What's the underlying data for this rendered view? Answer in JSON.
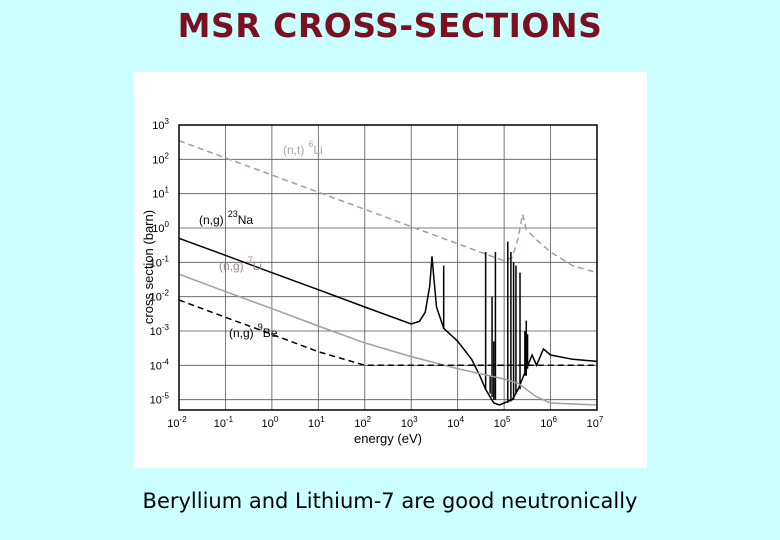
{
  "title": "MSR CROSS-SECTIONS",
  "caption": "Beryllium and Lithium-7 are good neutronically",
  "chart_data": {
    "type": "line",
    "xlabel": "energy (eV)",
    "ylabel": "cross section (barn)",
    "xscale": "log",
    "yscale": "log",
    "xlim": [
      0.01,
      10000000
    ],
    "ylim": [
      5e-06,
      1000
    ],
    "grid": true,
    "x_ticks": [
      {
        "base": "10",
        "exp": "-2"
      },
      {
        "base": "10",
        "exp": "-1"
      },
      {
        "base": "10",
        "exp": "0"
      },
      {
        "base": "10",
        "exp": "1"
      },
      {
        "base": "10",
        "exp": "2"
      },
      {
        "base": "10",
        "exp": "3"
      },
      {
        "base": "10",
        "exp": "4"
      },
      {
        "base": "10",
        "exp": "5"
      },
      {
        "base": "10",
        "exp": "6"
      },
      {
        "base": "10",
        "exp": "7"
      }
    ],
    "y_ticks": [
      {
        "base": "10",
        "exp": "3"
      },
      {
        "base": "10",
        "exp": "2"
      },
      {
        "base": "10",
        "exp": "1"
      },
      {
        "base": "10",
        "exp": "0"
      },
      {
        "base": "10",
        "exp": "-1"
      },
      {
        "base": "10",
        "exp": "-2"
      },
      {
        "base": "10",
        "exp": "-3"
      },
      {
        "base": "10",
        "exp": "-4"
      },
      {
        "base": "10",
        "exp": "-5"
      }
    ],
    "series": [
      {
        "key": "li6",
        "color": "#a89b9b",
        "dash": "dashed",
        "label": {
          "reaction": "(n,t)",
          "mass": "6",
          "element": "Li",
          "color": "#b0a0a0"
        },
        "x": [
          0.01,
          0.1,
          1,
          10,
          100,
          1000,
          10000,
          100000,
          150000,
          200000,
          250000,
          300000,
          500000,
          1000000,
          3000000,
          10000000
        ],
        "y": [
          350,
          110,
          35,
          11,
          3.5,
          1.1,
          0.35,
          0.11,
          0.14,
          0.5,
          2.5,
          0.9,
          0.45,
          0.2,
          0.08,
          0.05
        ]
      },
      {
        "key": "na23",
        "color": "#000000",
        "dash": "solid",
        "label": {
          "reaction": "(n,g)",
          "mass": "23",
          "element": "Na",
          "color": "#000000"
        },
        "x": [
          0.01,
          0.1,
          1,
          10,
          100,
          1000,
          1500,
          2000,
          2500,
          2800,
          3000,
          3500,
          5000,
          10000,
          20000,
          30000,
          40000,
          50000,
          60000,
          80000,
          100000,
          150000,
          200000,
          400000,
          500000,
          700000,
          1000000,
          3000000,
          10000000
        ],
        "y": [
          0.5,
          0.16,
          0.05,
          0.016,
          0.005,
          0.0016,
          0.0019,
          0.0035,
          0.02,
          0.15,
          0.05,
          0.005,
          0.0012,
          0.0005,
          0.00015,
          5e-05,
          2e-05,
          1.2e-05,
          8e-06,
          7e-06,
          8e-06,
          1e-05,
          2e-05,
          0.0002,
          0.0001,
          0.0003,
          0.0002,
          0.00015,
          0.00013
        ],
        "resonances": [
          {
            "x": 5000,
            "y_min": 0.0012,
            "y_max": 0.08
          },
          {
            "x": 40000,
            "y_min": 2e-05,
            "y_max": 0.2
          },
          {
            "x": 50000,
            "y_min": 1.5e-05,
            "y_max": 5e-05
          },
          {
            "x": 55000,
            "y_min": 1.2e-05,
            "y_max": 0.01
          },
          {
            "x": 60000,
            "y_min": 1e-05,
            "y_max": 0.0005
          },
          {
            "x": 65000,
            "y_min": 1e-05,
            "y_max": 0.2
          },
          {
            "x": 120000,
            "y_min": 8e-06,
            "y_max": 0.4
          },
          {
            "x": 140000,
            "y_min": 9e-06,
            "y_max": 0.2
          },
          {
            "x": 160000,
            "y_min": 1e-05,
            "y_max": 0.1
          },
          {
            "x": 180000,
            "y_min": 1.5e-05,
            "y_max": 0.08
          },
          {
            "x": 220000,
            "y_min": 2e-05,
            "y_max": 0.05
          },
          {
            "x": 280000,
            "y_min": 5e-05,
            "y_max": 0.001
          },
          {
            "x": 300000,
            "y_min": 5e-05,
            "y_max": 0.002
          },
          {
            "x": 320000,
            "y_min": 8e-05,
            "y_max": 0.0008
          }
        ]
      },
      {
        "key": "li7",
        "color": "#a89b9b",
        "dash": "solid",
        "label": {
          "reaction": "(n,g)",
          "mass": "7",
          "element": "Li",
          "color": "#a08888"
        },
        "x": [
          0.01,
          0.1,
          1,
          10,
          100,
          1000,
          10000,
          100000,
          200000,
          300000,
          500000,
          1000000,
          10000000
        ],
        "y": [
          0.045,
          0.014,
          0.0045,
          0.0014,
          0.00045,
          0.00018,
          8e-05,
          4e-05,
          3e-05,
          2e-05,
          1.2e-05,
          8e-06,
          7e-06
        ]
      },
      {
        "key": "be9",
        "color": "#000000",
        "dash": "dashed",
        "label": {
          "reaction": "(n,g)",
          "mass": "9",
          "element": "Be",
          "color": "#000000"
        },
        "x": [
          0.01,
          0.1,
          1,
          10,
          100,
          1000,
          10000,
          100000,
          1000000,
          10000000
        ],
        "y": [
          0.008,
          0.0025,
          0.0008,
          0.00025,
          0.0001,
          0.0001,
          0.0001,
          0.0001,
          0.0001,
          0.0001
        ]
      }
    ]
  }
}
